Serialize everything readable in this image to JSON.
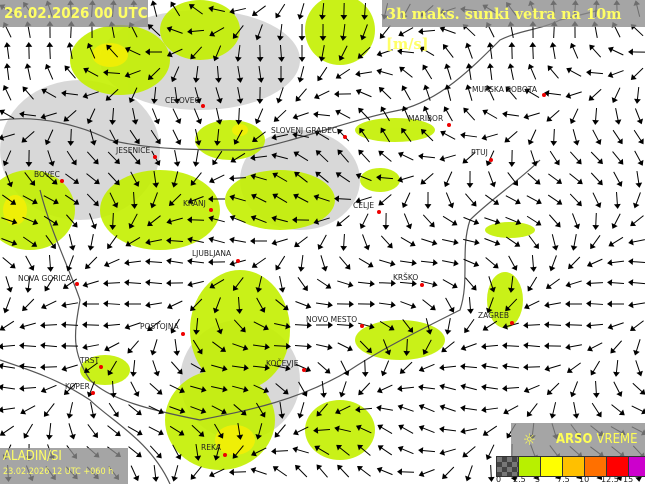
{
  "header": {
    "valid_time": "26.02.2026 00 UTC",
    "title": "3h maks. sunki vetra na 10m [m/s]"
  },
  "model": {
    "name": "ALADIN/SI",
    "run": "23.02.2026 12 UTC +060 h"
  },
  "brand": {
    "bold": "ARSO",
    "light": "VREME",
    "icon": "wind-turbine-icon"
  },
  "legend": {
    "ticks": [
      "0",
      "2.5",
      "5",
      "7.5",
      "10",
      "12.5",
      "15"
    ],
    "colors": [
      "#555555",
      "#b8f000",
      "#ffff00",
      "#ffc000",
      "#ff7000",
      "#ff0000",
      "#cc00cc"
    ]
  },
  "cities": [
    "CELOVEC",
    "SLOVENJ GRADEC",
    "MURSKA SOBOTA",
    "MARIBOR",
    "PTUJ",
    "JESENICE",
    "BOVEC",
    "KRANJ",
    "CELJE",
    "LJUBLJANA",
    "KRŠKO",
    "NOVA GORICA",
    "ZAGREB",
    "NOVO MESTO",
    "POSTOJNA",
    "KOČEVJE",
    "TRST",
    "KOPER",
    "REKA"
  ]
}
